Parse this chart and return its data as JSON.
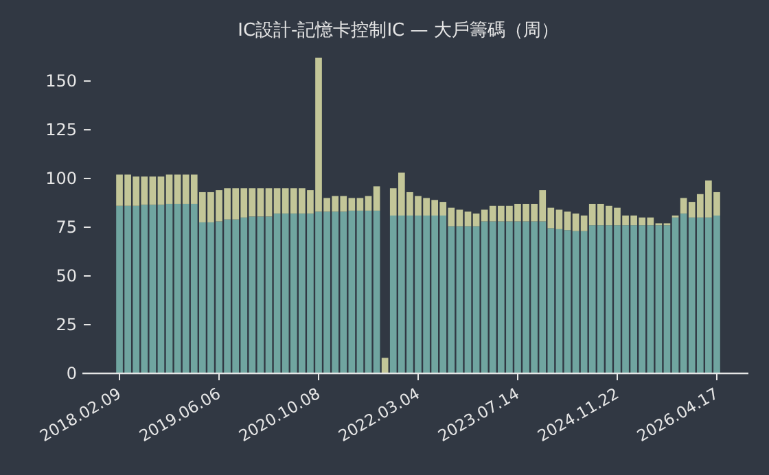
{
  "chart_data": {
    "type": "bar",
    "title": "IC設計-記憶卡控制IC — 大戶籌碼（周）",
    "stacked": true,
    "categories": [
      "2018.02.09",
      null,
      null,
      null,
      null,
      null,
      null,
      null,
      null,
      null,
      null,
      null,
      "2019.06.06",
      null,
      null,
      null,
      null,
      null,
      null,
      null,
      null,
      null,
      null,
      null,
      "2020.10.08",
      null,
      null,
      null,
      null,
      null,
      null,
      null,
      null,
      null,
      null,
      null,
      "2022.03.04",
      null,
      null,
      null,
      null,
      null,
      null,
      null,
      null,
      null,
      null,
      null,
      "2023.07.14",
      null,
      null,
      null,
      null,
      null,
      null,
      null,
      null,
      null,
      null,
      null,
      "2024.11.22",
      null,
      null,
      null,
      null,
      null,
      null,
      null,
      null,
      null,
      null,
      null,
      "2026.04.17"
    ],
    "series": [
      {
        "color": "#70a5a0",
        "values": [
          86,
          86,
          86,
          86.5,
          86.5,
          86.5,
          87,
          87,
          87,
          87,
          77.5,
          77.5,
          78,
          79,
          79,
          80,
          80.5,
          80.5,
          80.5,
          82,
          82,
          82,
          82,
          82,
          83,
          83,
          83,
          83,
          83.5,
          83.5,
          83.5,
          83.5,
          0,
          81,
          81,
          81,
          81,
          81,
          81,
          81,
          75.5,
          75.5,
          75.5,
          75.5,
          78,
          78,
          78,
          78,
          78,
          78,
          78,
          78,
          74.5,
          74,
          73.5,
          73,
          73,
          76,
          76,
          76,
          76,
          76,
          76,
          76,
          76,
          76,
          76,
          80,
          82,
          80,
          80,
          80,
          81
        ]
      },
      {
        "color": "#c3c698",
        "values": [
          16,
          16,
          15,
          14.5,
          14.5,
          14.5,
          15,
          15,
          15,
          15,
          15.5,
          15.5,
          16,
          16,
          16,
          15,
          14.5,
          14.5,
          14.5,
          13,
          13,
          13,
          13,
          12,
          79,
          7,
          8,
          8,
          6.5,
          6.5,
          7.5,
          12.5,
          8,
          14,
          22,
          12,
          10,
          9,
          8,
          7,
          9.5,
          8.5,
          7.5,
          6.5,
          6,
          8,
          8,
          8,
          9,
          9,
          9,
          16,
          10.5,
          10,
          9.5,
          9,
          8,
          11,
          11,
          10,
          9,
          5,
          5,
          4,
          4,
          1,
          1,
          1,
          8,
          8,
          12,
          19,
          12
        ]
      }
    ],
    "ylim": [
      0,
      162
    ],
    "yticks": [
      0,
      25,
      50,
      75,
      100,
      125,
      150
    ],
    "grid": false
  }
}
